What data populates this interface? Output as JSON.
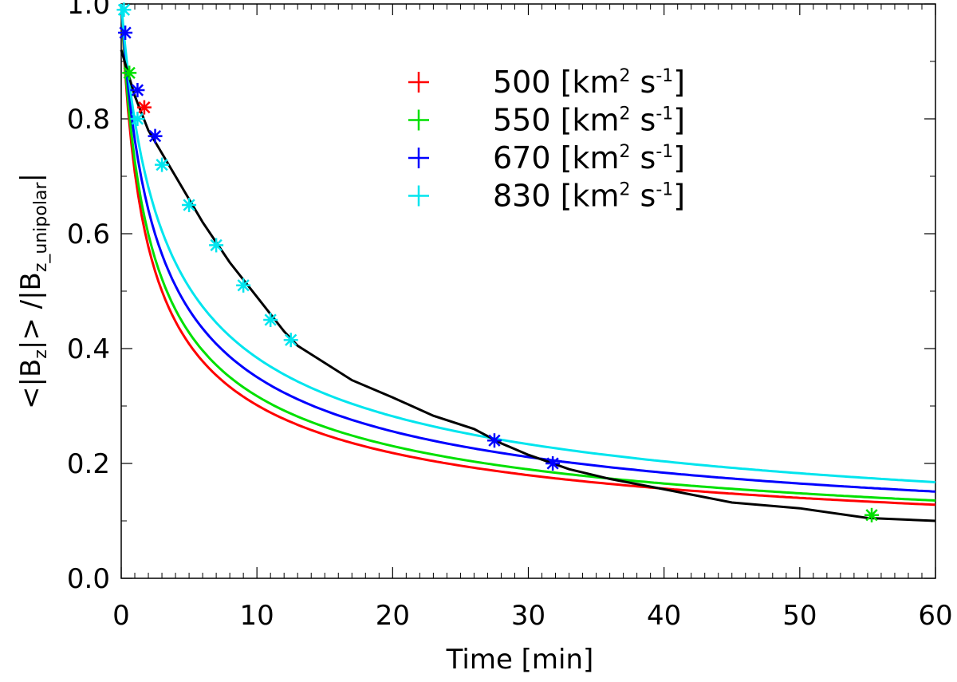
{
  "chart_data": {
    "type": "line",
    "title": "",
    "xlabel": "Time [min]",
    "ylabel_main": "<|B",
    "ylabel_sub1": "z",
    "ylabel_mid": "|> /|B",
    "ylabel_sub2": "z_unipolar",
    "ylabel_end": "|",
    "xlim": [
      0,
      60
    ],
    "ylim": [
      0,
      1.0
    ],
    "xticks": [
      0,
      10,
      20,
      30,
      40,
      50,
      60
    ],
    "xtick_labels": [
      "0",
      "10",
      "20",
      "30",
      "40",
      "50",
      "60"
    ],
    "yticks": [
      0.0,
      0.2,
      0.4,
      0.6,
      0.8,
      1.0
    ],
    "ytick_labels": [
      "0.0",
      "0.2",
      "0.4",
      "0.6",
      "0.8",
      "1.0"
    ],
    "legend_position": "top-center",
    "legend_unit_main": "[km",
    "legend_unit_sup1": "2",
    "legend_unit_mid": " s",
    "legend_unit_sup2": "-1",
    "legend_unit_end": "]",
    "series": [
      {
        "name": "500",
        "color": "#ff0000",
        "model_t0": 1.0,
        "points": [
          [
            1.7,
            0.82
          ]
        ]
      },
      {
        "name": "550",
        "color": "#00e000",
        "model_t0": 1.12,
        "points": [
          [
            0.6,
            0.88
          ],
          [
            55.3,
            0.11
          ]
        ]
      },
      {
        "name": "670",
        "color": "#0000ff",
        "model_t0": 1.4,
        "points": [
          [
            0.3,
            0.95
          ],
          [
            1.2,
            0.85
          ],
          [
            2.5,
            0.77
          ],
          [
            27.5,
            0.24
          ],
          [
            31.8,
            0.2
          ]
        ]
      },
      {
        "name": "830",
        "color": "#00e5ee",
        "model_t0": 1.73,
        "points": [
          [
            0.2,
            0.99
          ],
          [
            1.2,
            0.8
          ],
          [
            3.0,
            0.72
          ],
          [
            5.0,
            0.65
          ],
          [
            7.0,
            0.58
          ],
          [
            9.0,
            0.51
          ],
          [
            11.0,
            0.45
          ],
          [
            12.5,
            0.415
          ]
        ]
      }
    ],
    "observed": {
      "name": "observed",
      "color": "#000000",
      "x": [
        0,
        1,
        2,
        4,
        6,
        8,
        10,
        12,
        13,
        15,
        17,
        20,
        23,
        26,
        28,
        30,
        33,
        36,
        40,
        45,
        50,
        55,
        60
      ],
      "y": [
        0.92,
        0.84,
        0.78,
        0.7,
        0.62,
        0.55,
        0.49,
        0.43,
        0.405,
        0.375,
        0.345,
        0.315,
        0.283,
        0.26,
        0.235,
        0.215,
        0.19,
        0.173,
        0.155,
        0.132,
        0.122,
        0.105,
        0.1
      ]
    }
  }
}
